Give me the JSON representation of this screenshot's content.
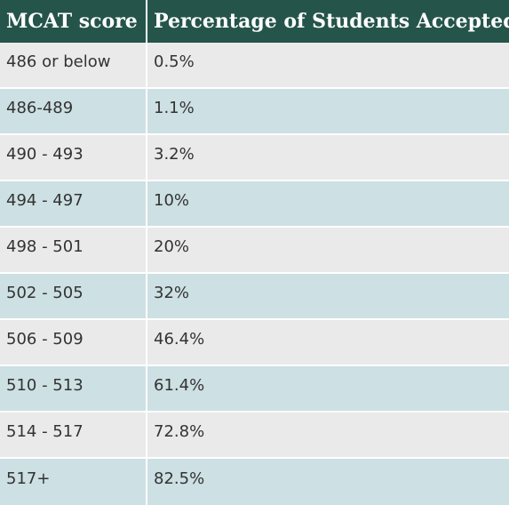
{
  "table": {
    "headers": {
      "score": "MCAT score",
      "percentage": "Percentage of Students Accepted"
    },
    "rows": [
      {
        "score": "486 or below",
        "percentage": "0.5%"
      },
      {
        "score": "486-489",
        "percentage": "1.1%"
      },
      {
        "score": "490 - 493",
        "percentage": "3.2%"
      },
      {
        "score": "494 - 497",
        "percentage": "10%"
      },
      {
        "score": "498 - 501",
        "percentage": "20%"
      },
      {
        "score": "502 - 505",
        "percentage": "32%"
      },
      {
        "score": "506 - 509",
        "percentage": "46.4%"
      },
      {
        "score": "510 - 513",
        "percentage": "61.4%"
      },
      {
        "score": "514 - 517",
        "percentage": "72.8%"
      },
      {
        "score": "517+",
        "percentage": "82.5%"
      }
    ]
  },
  "colors": {
    "header_background": "#24544a",
    "header_text": "#ffffff",
    "row_light": "#eaeaea",
    "row_tint": "#cde0e3",
    "cell_text": "#333333"
  }
}
